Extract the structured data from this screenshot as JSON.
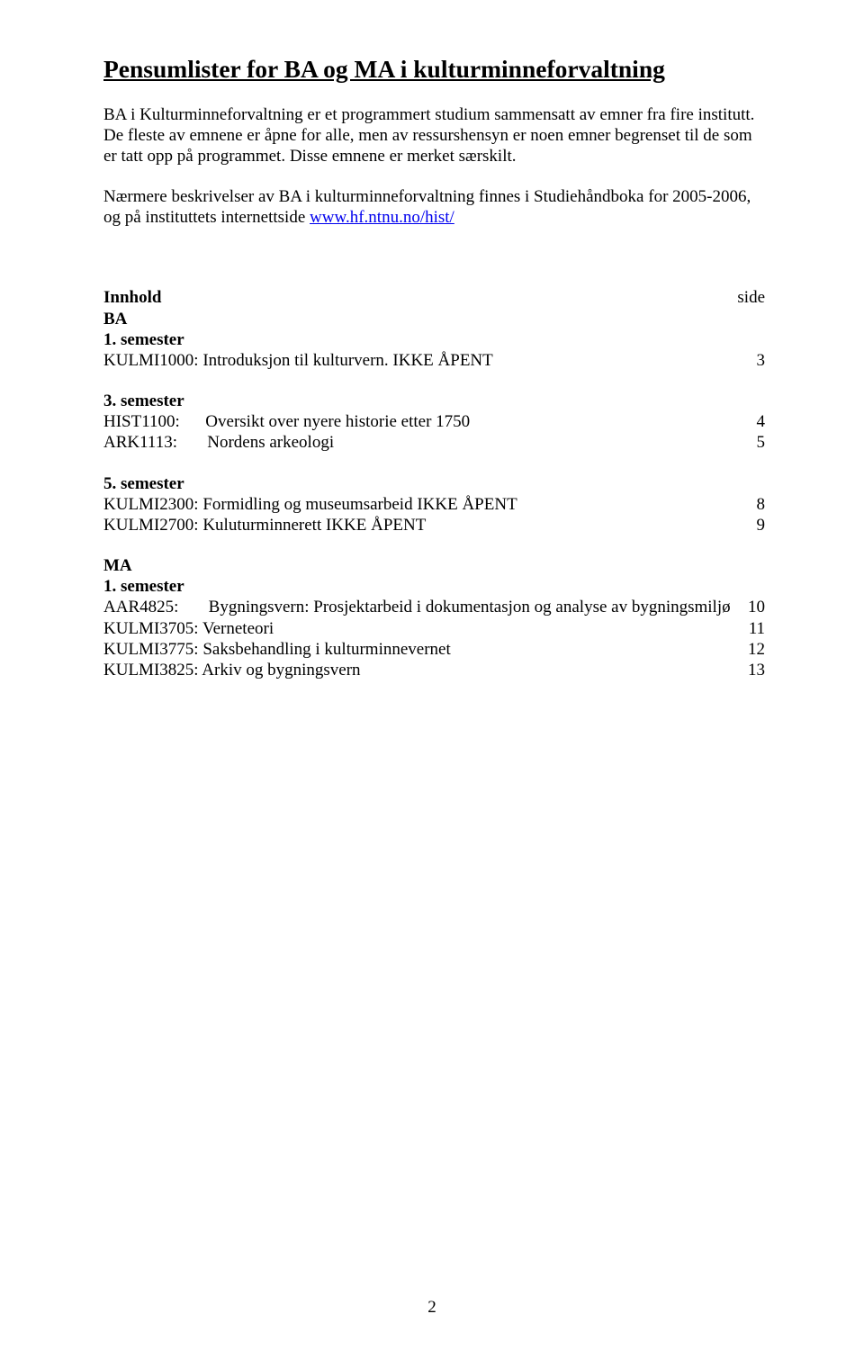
{
  "title": "Pensumlister for BA og MA i kulturminneforvaltning",
  "para1": "BA i Kulturminneforvaltning er et programmert studium sammensatt av emner fra fire institutt. De fleste av emnene er åpne for alle, men av ressurshensyn er noen emner begrenset til de som er tatt opp på programmet. Disse emnene er merket særskilt.",
  "para2_a": "Nærmere beskrivelser av BA i kulturminneforvaltning finnes i Studiehåndboka for 2005-2006, og på instituttets internettside ",
  "para2_link": "www.hf.ntnu.no/hist/",
  "innhold_label": "Innhold",
  "side_label": "side",
  "ba_label": "BA",
  "sem1_label": "1. semester",
  "sem3_label": "3. semester",
  "sem5_label": "5. semester",
  "ma_label": "MA",
  "items": {
    "k1000": {
      "code": "KULMI1000:",
      "text": "Introduksjon til kulturvern. IKKE ÅPENT",
      "page": "3"
    },
    "h1100": {
      "code": "HIST1100:",
      "text": "Oversikt over nyere historie etter 1750",
      "page": "4"
    },
    "a1113": {
      "code": "ARK1113:",
      "text": "Nordens arkeologi",
      "page": "5"
    },
    "k2300": {
      "code": "KULMI2300:",
      "text": "Formidling og museumsarbeid IKKE ÅPENT",
      "page": "8"
    },
    "k2700": {
      "code": "KULMI2700:",
      "text": "Kuluturminnerett IKKE ÅPENT",
      "page": "9"
    },
    "a4825": {
      "code": "AAR4825:",
      "text": "Bygningsvern: Prosjektarbeid i dokumentasjon og analyse av bygningsmiljø",
      "page": "10"
    },
    "k3705": {
      "code": "KULMI3705:",
      "text": "Verneteori",
      "page": "11"
    },
    "k3775": {
      "code": "KULMI3775:",
      "text": "Saksbehandling i kulturminnevernet",
      "page": "12"
    },
    "k3825": {
      "code": "KULMI3825:",
      "text": "Arkiv og bygningsvern",
      "page": "13"
    }
  },
  "page_number": "2"
}
